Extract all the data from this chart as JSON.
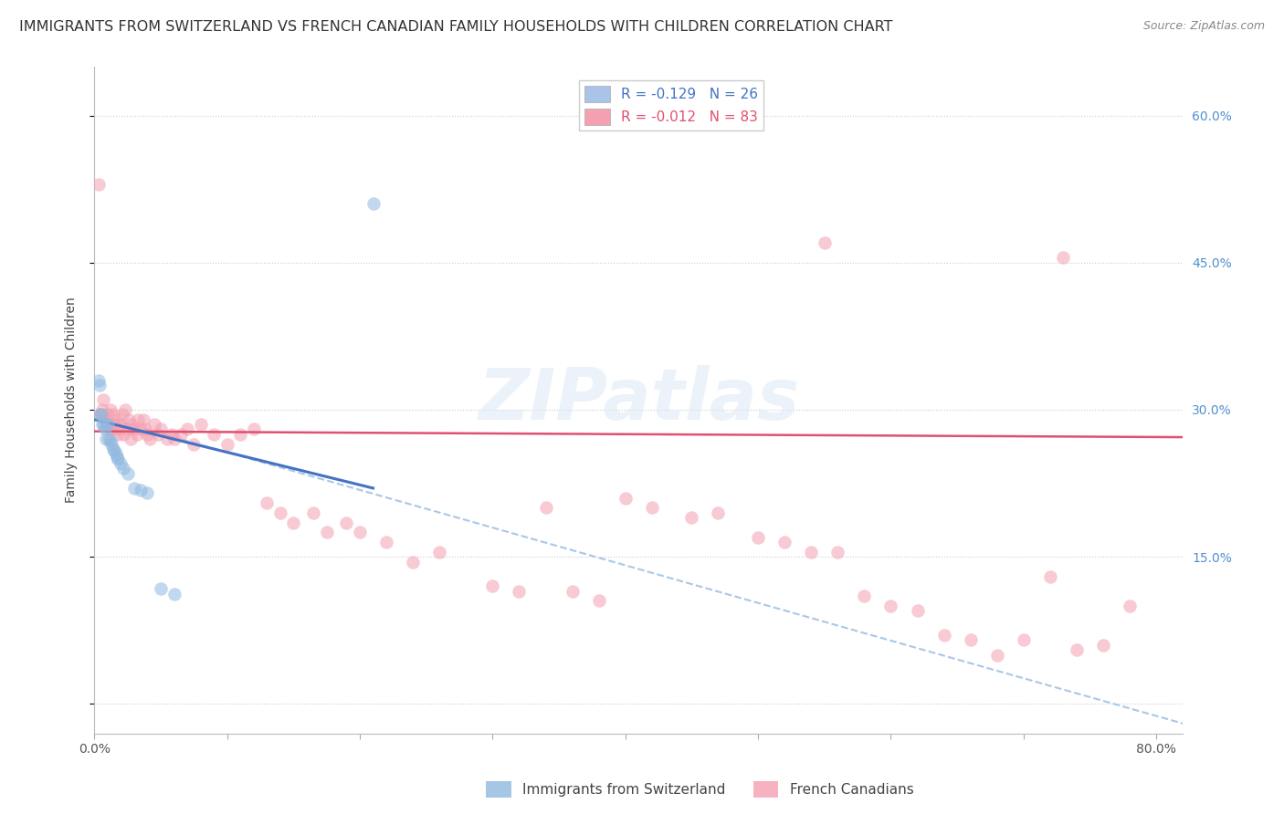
{
  "title": "IMMIGRANTS FROM SWITZERLAND VS FRENCH CANADIAN FAMILY HOUSEHOLDS WITH CHILDREN CORRELATION CHART",
  "source": "Source: ZipAtlas.com",
  "ylabel": "Family Households with Children",
  "xlim": [
    0.0,
    0.82
  ],
  "ylim": [
    -0.03,
    0.65
  ],
  "y_ticks": [
    0.0,
    0.15,
    0.3,
    0.45,
    0.6
  ],
  "y_tick_labels_right": [
    "",
    "15.0%",
    "30.0%",
    "45.0%",
    "60.0%"
  ],
  "x_tick_positions": [
    0.0,
    0.1,
    0.2,
    0.3,
    0.4,
    0.5,
    0.6,
    0.7,
    0.8
  ],
  "x_tick_labels": [
    "0.0%",
    "",
    "",
    "",
    "",
    "",
    "",
    "",
    "80.0%"
  ],
  "legend_entries": [
    {
      "label": "R = -0.129   N = 26",
      "color": "#aac4e8"
    },
    {
      "label": "R = -0.012   N = 83",
      "color": "#f4a0b0"
    }
  ],
  "legend_bottom": [
    "Immigrants from Switzerland",
    "French Canadians"
  ],
  "watermark": "ZIPatlas",
  "blue_scatter_x": [
    0.003,
    0.004,
    0.004,
    0.005,
    0.006,
    0.007,
    0.008,
    0.009,
    0.01,
    0.011,
    0.012,
    0.013,
    0.014,
    0.015,
    0.016,
    0.017,
    0.018,
    0.02,
    0.022,
    0.025,
    0.03,
    0.035,
    0.04,
    0.05,
    0.06,
    0.21
  ],
  "blue_scatter_y": [
    0.33,
    0.325,
    0.295,
    0.295,
    0.285,
    0.285,
    0.28,
    0.27,
    0.285,
    0.27,
    0.268,
    0.265,
    0.26,
    0.258,
    0.255,
    0.252,
    0.25,
    0.245,
    0.24,
    0.235,
    0.22,
    0.218,
    0.215,
    0.118,
    0.112,
    0.51
  ],
  "pink_scatter_x": [
    0.003,
    0.004,
    0.005,
    0.006,
    0.007,
    0.008,
    0.009,
    0.01,
    0.011,
    0.012,
    0.013,
    0.014,
    0.015,
    0.016,
    0.017,
    0.018,
    0.019,
    0.02,
    0.021,
    0.022,
    0.023,
    0.025,
    0.026,
    0.027,
    0.028,
    0.03,
    0.032,
    0.033,
    0.035,
    0.037,
    0.038,
    0.04,
    0.042,
    0.045,
    0.048,
    0.05,
    0.055,
    0.058,
    0.06,
    0.065,
    0.07,
    0.075,
    0.08,
    0.09,
    0.1,
    0.11,
    0.12,
    0.13,
    0.14,
    0.15,
    0.165,
    0.175,
    0.19,
    0.2,
    0.22,
    0.24,
    0.26,
    0.3,
    0.32,
    0.34,
    0.36,
    0.38,
    0.4,
    0.42,
    0.45,
    0.47,
    0.5,
    0.52,
    0.54,
    0.56,
    0.58,
    0.6,
    0.62,
    0.64,
    0.66,
    0.68,
    0.7,
    0.72,
    0.74,
    0.76,
    0.78,
    0.55,
    0.73
  ],
  "pink_scatter_y": [
    0.53,
    0.295,
    0.295,
    0.3,
    0.31,
    0.29,
    0.285,
    0.295,
    0.285,
    0.3,
    0.28,
    0.295,
    0.285,
    0.28,
    0.29,
    0.275,
    0.28,
    0.285,
    0.295,
    0.275,
    0.3,
    0.28,
    0.29,
    0.27,
    0.285,
    0.28,
    0.275,
    0.29,
    0.28,
    0.29,
    0.28,
    0.275,
    0.27,
    0.285,
    0.275,
    0.28,
    0.27,
    0.275,
    0.27,
    0.275,
    0.28,
    0.265,
    0.285,
    0.275,
    0.265,
    0.275,
    0.28,
    0.205,
    0.195,
    0.185,
    0.195,
    0.175,
    0.185,
    0.175,
    0.165,
    0.145,
    0.155,
    0.12,
    0.115,
    0.2,
    0.115,
    0.105,
    0.21,
    0.2,
    0.19,
    0.195,
    0.17,
    0.165,
    0.155,
    0.155,
    0.11,
    0.1,
    0.095,
    0.07,
    0.065,
    0.05,
    0.065,
    0.13,
    0.055,
    0.06,
    0.1,
    0.47,
    0.455
  ],
  "blue_line_x": [
    0.0,
    0.21
  ],
  "blue_line_y": [
    0.29,
    0.22
  ],
  "pink_line_x": [
    0.0,
    0.82
  ],
  "pink_line_y": [
    0.278,
    0.272
  ],
  "dashed_line_x": [
    0.0,
    0.82
  ],
  "dashed_line_y": [
    0.295,
    -0.02
  ],
  "scatter_size": 110,
  "scatter_alpha": 0.55,
  "blue_color": "#90b8e0",
  "pink_color": "#f4a0b0",
  "blue_line_color": "#4472c4",
  "pink_line_color": "#e05070",
  "dashed_line_color": "#a8c8e8",
  "grid_color": "#cccccc",
  "right_axis_color": "#5090d0",
  "title_fontsize": 11.5,
  "source_fontsize": 9,
  "axis_label_fontsize": 10,
  "tick_fontsize": 10,
  "legend_fontsize": 11
}
